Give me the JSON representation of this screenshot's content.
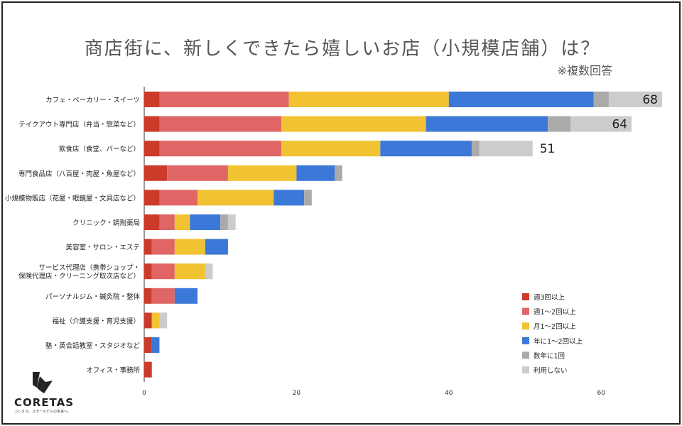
{
  "chart_data": {
    "type": "bar",
    "orientation": "horizontal",
    "stacked": true,
    "title": "商店街に、新しくできたら嬉しいお店（小規模店舗）は？",
    "subtitle": "※複数回答",
    "categories": [
      "カフェ・ベーカリー・スイーツ",
      "テイクアウト専門店（弁当・惣菜など）",
      "飲食店（食堂、バーなど）",
      "専門食品店（八百屋・肉屋・魚屋など）",
      "小規模物販店（花屋・眼鏡屋・文具店など）",
      "クリニック・調剤薬局",
      "美容室・サロン・エステ",
      "サービス代理店（携帯ショップ・\n保険代理店・クリーニング取次店など）",
      "パーソナルジム・鍼灸院・整体",
      "福祉（介護支援・育児支援）",
      "塾・英会話教室・スタジオなど",
      "オフィス・事務所"
    ],
    "series": [
      {
        "name": "週3回以上",
        "color": "#cc3a2a",
        "values": [
          2,
          2,
          2,
          3,
          2,
          2,
          1,
          1,
          1,
          1,
          1,
          1
        ]
      },
      {
        "name": "週1～2回以上",
        "color": "#e06666",
        "values": [
          17,
          16,
          16,
          8,
          5,
          2,
          3,
          3,
          3,
          0,
          0,
          0
        ]
      },
      {
        "name": "月1～2回以上",
        "color": "#f1c232",
        "values": [
          21,
          19,
          13,
          9,
          10,
          2,
          4,
          4,
          0,
          1,
          0,
          0
        ]
      },
      {
        "name": "年に1～2回以上",
        "color": "#3c78d8",
        "values": [
          19,
          16,
          12,
          5,
          4,
          4,
          3,
          0,
          3,
          0,
          1,
          0
        ]
      },
      {
        "name": "数年に1回",
        "color": "#aaaaaa",
        "values": [
          2,
          3,
          1,
          1,
          1,
          1,
          0,
          0,
          0,
          0,
          0,
          0
        ]
      },
      {
        "name": "利用しない",
        "color": "#cccccc",
        "values": [
          7,
          8,
          7,
          0,
          0,
          1,
          0,
          1,
          0,
          1,
          0,
          0
        ]
      }
    ],
    "totals_shown": [
      68,
      64,
      51
    ],
    "x_ticks": [
      0,
      20,
      40,
      60
    ],
    "xlim": [
      0,
      70
    ],
    "legend_position": "bottom-right"
  },
  "brand": {
    "name": "CORETAS",
    "tagline": "コレタス。スモールビルの未来へ。"
  }
}
